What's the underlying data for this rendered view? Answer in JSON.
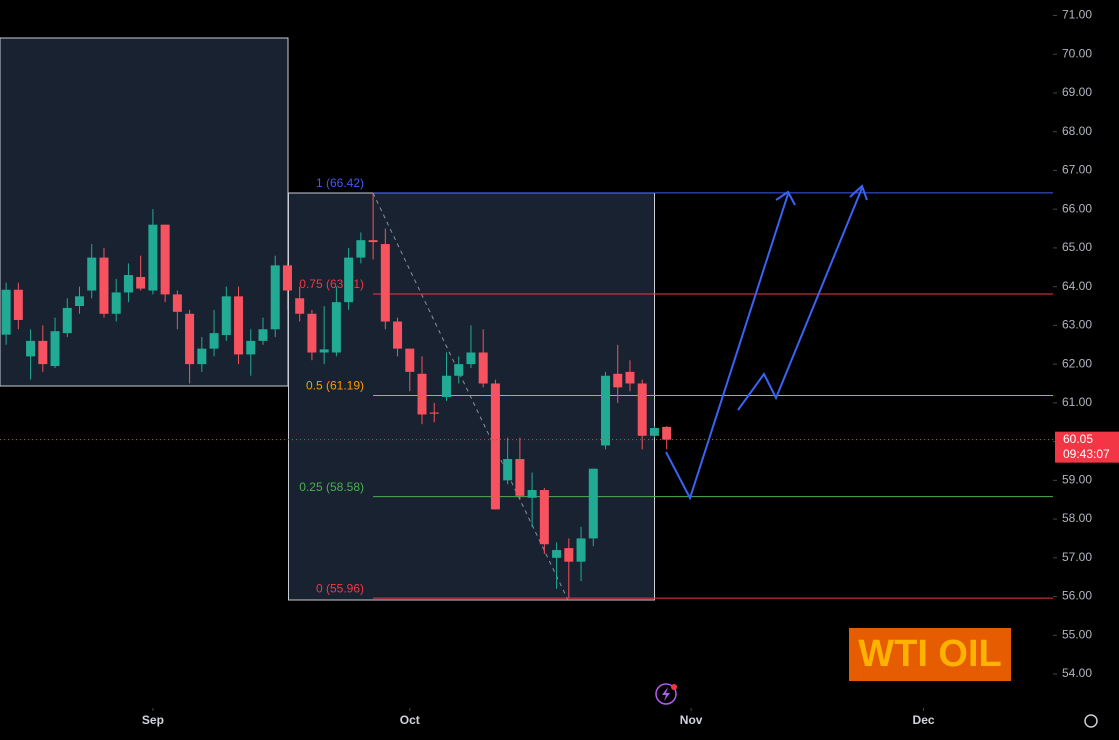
{
  "chart_data": {
    "type": "candlestick",
    "x": [
      0,
      1,
      2,
      3,
      4,
      5,
      6,
      7,
      8,
      9,
      10,
      11,
      12,
      13,
      14,
      15,
      16,
      17,
      18,
      19,
      20,
      21,
      22,
      23,
      24,
      25,
      26,
      27,
      28,
      29,
      30,
      31,
      32,
      33,
      34,
      35,
      36,
      37,
      38,
      39,
      40,
      41,
      42,
      43,
      44,
      45,
      46,
      47,
      48,
      49,
      50,
      51,
      52,
      53,
      54
    ],
    "open": [
      62.76,
      63.92,
      62.2,
      62.6,
      61.95,
      62.8,
      63.5,
      63.9,
      64.75,
      63.3,
      63.85,
      64.25,
      63.9,
      65.6,
      63.8,
      63.3,
      62.0,
      62.4,
      62.75,
      63.75,
      62.25,
      62.6,
      62.9,
      64.55,
      63.7,
      63.3,
      62.3,
      62.3,
      63.6,
      64.75,
      65.2,
      65.1,
      63.1,
      62.4,
      61.75,
      60.75,
      61.15,
      61.7,
      62.0,
      62.3,
      61.5,
      59.0,
      59.55,
      58.55,
      58.75,
      57.0,
      57.25,
      56.9,
      57.5,
      59.9,
      61.75,
      61.8,
      61.5,
      60.15,
      60.38
    ],
    "high": [
      64.1,
      64.1,
      62.9,
      63.0,
      63.2,
      63.7,
      64.0,
      65.1,
      65.0,
      64.2,
      64.6,
      64.8,
      66.0,
      65.6,
      63.9,
      63.4,
      62.7,
      63.4,
      64.0,
      64.0,
      62.9,
      63.2,
      64.8,
      64.6,
      64.0,
      63.4,
      63.5,
      64.0,
      65.0,
      65.4,
      66.42,
      65.5,
      63.2,
      62.4,
      62.2,
      61.0,
      62.3,
      62.2,
      63.0,
      62.9,
      61.6,
      60.1,
      60.1,
      59.2,
      58.8,
      57.4,
      57.5,
      57.8,
      59.3,
      61.8,
      62.5,
      62.1,
      61.6,
      60.4,
      60.4
    ],
    "low": [
      62.5,
      62.9,
      61.6,
      61.8,
      61.9,
      62.7,
      63.3,
      63.7,
      63.2,
      63.1,
      63.6,
      63.9,
      63.8,
      63.6,
      62.9,
      61.5,
      61.8,
      62.2,
      62.6,
      62.0,
      61.7,
      62.5,
      62.7,
      63.4,
      63.1,
      62.1,
      62.0,
      62.2,
      63.4,
      64.6,
      64.7,
      62.9,
      62.2,
      61.3,
      60.45,
      60.5,
      61.05,
      61.5,
      61.9,
      61.4,
      58.25,
      58.9,
      58.5,
      57.8,
      57.1,
      56.2,
      55.96,
      56.4,
      57.3,
      59.8,
      61.0,
      61.3,
      59.8,
      60.1,
      59.8
    ],
    "close": [
      63.92,
      63.14,
      62.6,
      62.0,
      62.85,
      63.45,
      63.75,
      64.75,
      63.3,
      63.85,
      64.3,
      63.95,
      65.6,
      63.8,
      63.35,
      62.0,
      62.4,
      62.8,
      63.75,
      62.25,
      62.6,
      62.9,
      64.55,
      63.9,
      63.3,
      62.3,
      62.38,
      63.6,
      64.75,
      65.2,
      65.15,
      63.1,
      62.4,
      61.8,
      60.7,
      60.72,
      61.7,
      62.0,
      62.3,
      61.5,
      58.25,
      59.55,
      58.6,
      58.75,
      57.35,
      57.2,
      56.9,
      57.5,
      59.3,
      61.7,
      61.4,
      61.5,
      60.15,
      60.35,
      60.05
    ],
    "up_color": "#22ab94",
    "down_color": "#f7525f",
    "xlim": [
      -0.5,
      85.5
    ],
    "xticks": [
      {
        "value": 12,
        "label": "Sep"
      },
      {
        "value": 33,
        "label": "Oct"
      },
      {
        "value": 56,
        "label": "Nov"
      },
      {
        "value": 75,
        "label": "Dec"
      }
    ],
    "ylim": [
      53.2,
      71.4
    ],
    "yticks": [
      {
        "value": 54,
        "label": "54.00"
      },
      {
        "value": 55,
        "label": "55.00"
      },
      {
        "value": 56,
        "label": "56.00"
      },
      {
        "value": 57,
        "label": "57.00"
      },
      {
        "value": 58,
        "label": "58.00"
      },
      {
        "value": 59,
        "label": "59.00"
      },
      {
        "value": 60,
        "label": "60.00"
      },
      {
        "value": 61,
        "label": "61.00"
      },
      {
        "value": 62,
        "label": "62.00"
      },
      {
        "value": 63,
        "label": "63.00"
      },
      {
        "value": 64,
        "label": "64.00"
      },
      {
        "value": 65,
        "label": "65.00"
      },
      {
        "value": 66,
        "label": "66.00"
      },
      {
        "value": 67,
        "label": "67.00"
      },
      {
        "value": 68,
        "label": "68.00"
      },
      {
        "value": 69,
        "label": "69.00"
      },
      {
        "value": 70,
        "label": "70.00"
      },
      {
        "value": 71,
        "label": "71.00"
      }
    ],
    "fib_levels": [
      {
        "value": 66.42,
        "label": "1 (66.42)",
        "color": "#3f5bf0"
      },
      {
        "value": 63.81,
        "label": "0.75 (63.81)",
        "color": "#f23645"
      },
      {
        "value": 61.19,
        "label": "0.5 (61.19)",
        "color": "#ff9800"
      },
      {
        "value": 58.58,
        "label": "0.25 (58.58)",
        "color": "#4caf50"
      },
      {
        "value": 55.96,
        "label": "0 (55.96)",
        "color": "#f23645"
      }
    ],
    "last_price": {
      "value": 60.05,
      "label": "60.05",
      "countdown": "09:43:07",
      "color": "#f23645"
    },
    "annotation": "WTI OIL"
  }
}
